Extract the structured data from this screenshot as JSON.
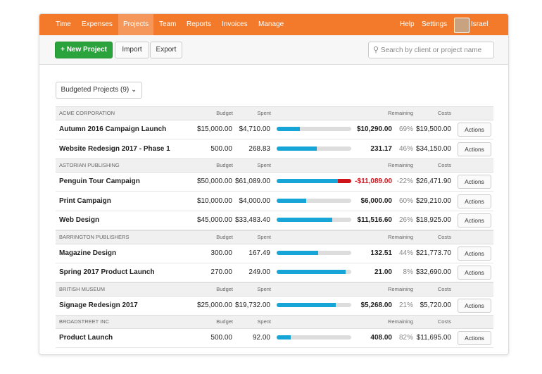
{
  "nav": {
    "items": [
      "Time",
      "Expenses",
      "Projects",
      "Team",
      "Reports",
      "Invoices",
      "Manage"
    ],
    "active": 2,
    "right": [
      "Help",
      "Settings"
    ],
    "user": "Israel"
  },
  "toolbar": {
    "new_project": "New Project",
    "import": "Import",
    "export": "Export",
    "search_placeholder": "Search by client or project name"
  },
  "filter": "Budgeted Projects (9)",
  "columns": {
    "budget": "Budget",
    "spent": "Spent",
    "remaining": "Remaining",
    "costs": "Costs"
  },
  "actions_label": "Actions",
  "groups": [
    {
      "client": "ACME CORPORATION",
      "projects": [
        {
          "name": "Autumn 2016 Campaign Launch",
          "budget": "$15,000.00",
          "spent": "$4,710.00",
          "remaining": "$10,290.00",
          "remaining_pct": "69%",
          "costs": "$19,500.00"
        },
        {
          "name": "Website Redesign 2017 - Phase 1",
          "budget": "500.00",
          "spent": "268.83",
          "remaining": "231.17",
          "remaining_pct": "46%",
          "costs": "$34,150.00"
        }
      ]
    },
    {
      "client": "ASTORIAN PUBLISHING",
      "projects": [
        {
          "name": "Penguin Tour Campaign",
          "budget": "$50,000.00",
          "spent": "$61,089.00",
          "remaining": "-$11,089.00",
          "remaining_pct": "-22%",
          "costs": "$26,471.90"
        },
        {
          "name": "Print Campaign",
          "budget": "$10,000.00",
          "spent": "$4,000.00",
          "remaining": "$6,000.00",
          "remaining_pct": "60%",
          "costs": "$29,210.00"
        },
        {
          "name": "Web Design",
          "budget": "$45,000.00",
          "spent": "$33,483.40",
          "remaining": "$11,516.60",
          "remaining_pct": "26%",
          "costs": "$18,925.00"
        }
      ]
    },
    {
      "client": "BARRINGTON PUBLISHERS",
      "projects": [
        {
          "name": "Magazine Design",
          "budget": "300.00",
          "spent": "167.49",
          "remaining": "132.51",
          "remaining_pct": "44%",
          "costs": "$21,773.70"
        },
        {
          "name": "Spring 2017 Product Launch",
          "budget": "270.00",
          "spent": "249.00",
          "remaining": "21.00",
          "remaining_pct": "8%",
          "costs": "$32,690.00"
        }
      ]
    },
    {
      "client": "BRITISH MUSEUM",
      "projects": [
        {
          "name": "Signage Redesign 2017",
          "budget": "$25,000.00",
          "spent": "$19,732.00",
          "remaining": "$5,268.00",
          "remaining_pct": "21%",
          "costs": "$5,720.00"
        }
      ]
    },
    {
      "client": "BROADSTREET INC",
      "projects": [
        {
          "name": "Product Launch",
          "budget": "500.00",
          "spent": "92.00",
          "remaining": "408.00",
          "remaining_pct": "82%",
          "costs": "$11,695.00"
        }
      ]
    }
  ]
}
